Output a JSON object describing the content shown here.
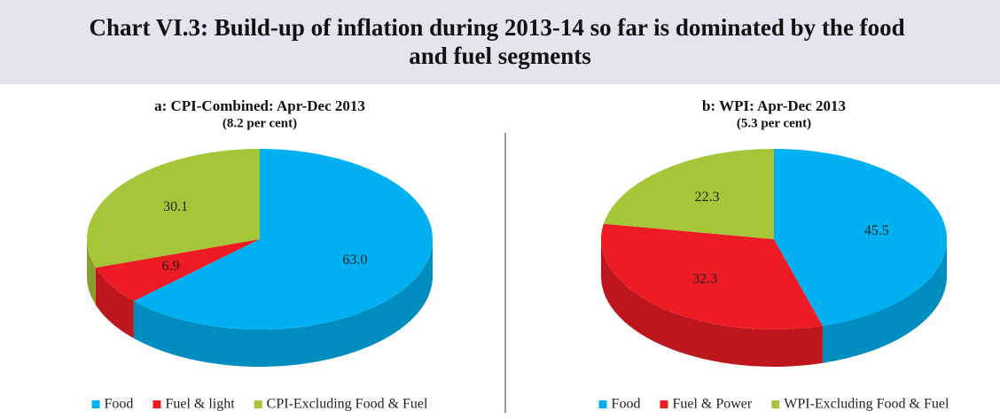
{
  "title": "Chart VI.3: Build-up of inflation during 2013-14 so far is dominated by the food and fuel segments",
  "chart_data": [
    {
      "type": "pie",
      "title": "a: CPI-Combined: Apr-Dec 2013",
      "subtitle": "(8.2 per cent)",
      "categories": [
        "Food",
        "Fuel & light",
        "CPI-Excluding Food & Fuel"
      ],
      "values": [
        63.0,
        6.9,
        30.1
      ],
      "value_labels": [
        "63.0",
        "6.9",
        "30.1"
      ],
      "colors": [
        "#00b0f0",
        "#ed1c24",
        "#a6c639"
      ],
      "legend": "bottom"
    },
    {
      "type": "pie",
      "title": "b: WPI: Apr-Dec 2013",
      "subtitle": "(5.3 per cent)",
      "categories": [
        "Food",
        "Fuel & Power",
        "WPI-Excluding Food & Fuel"
      ],
      "values": [
        45.5,
        32.3,
        22.3
      ],
      "value_labels": [
        "45.5",
        "32.3",
        "22.3"
      ],
      "colors": [
        "#00b0f0",
        "#ed1c24",
        "#a6c639"
      ],
      "legend": "bottom"
    }
  ]
}
